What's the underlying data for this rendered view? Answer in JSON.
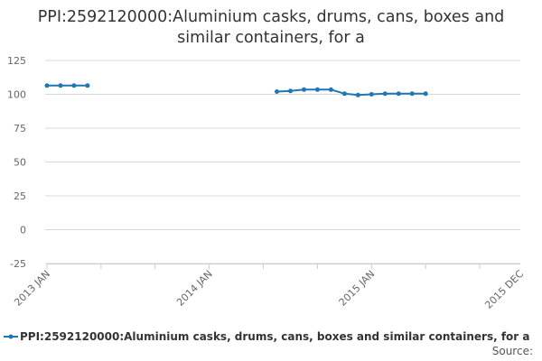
{
  "chart_data": {
    "type": "line",
    "title": "PPI:2592120000:Aluminium casks, drums, cans, boxes and similar containers, for a",
    "xlabel": "",
    "ylabel": "",
    "ylim": [
      -25,
      125
    ],
    "yticks": [
      125,
      100,
      75,
      50,
      25,
      0,
      -25
    ],
    "xlim": [
      "2013-01",
      "2015-12"
    ],
    "xticks": [
      "2013 JAN",
      "2014 JAN",
      "2015 JAN",
      "2015 DEC"
    ],
    "grid": "horizontal",
    "legend_position": "bottom",
    "series": [
      {
        "name": "PPI:2592120000:Aluminium casks, drums, cans, boxes and similar containers, for a",
        "color": "#1f77b4",
        "points": [
          {
            "x": "2013-01",
            "y": 106.5
          },
          {
            "x": "2013-02",
            "y": 106.5
          },
          {
            "x": "2013-03",
            "y": 106.5
          },
          {
            "x": "2013-04",
            "y": 106.5
          },
          {
            "x": "2014-06",
            "y": 102.0
          },
          {
            "x": "2014-07",
            "y": 102.5
          },
          {
            "x": "2014-08",
            "y": 103.5
          },
          {
            "x": "2014-09",
            "y": 103.5
          },
          {
            "x": "2014-10",
            "y": 103.5
          },
          {
            "x": "2014-11",
            "y": 100.5
          },
          {
            "x": "2014-12",
            "y": 99.5
          },
          {
            "x": "2015-01",
            "y": 100.0
          },
          {
            "x": "2015-02",
            "y": 100.5
          },
          {
            "x": "2015-03",
            "y": 100.5
          },
          {
            "x": "2015-04",
            "y": 100.5
          },
          {
            "x": "2015-05",
            "y": 100.5
          }
        ]
      }
    ],
    "source_label": "Source:"
  }
}
